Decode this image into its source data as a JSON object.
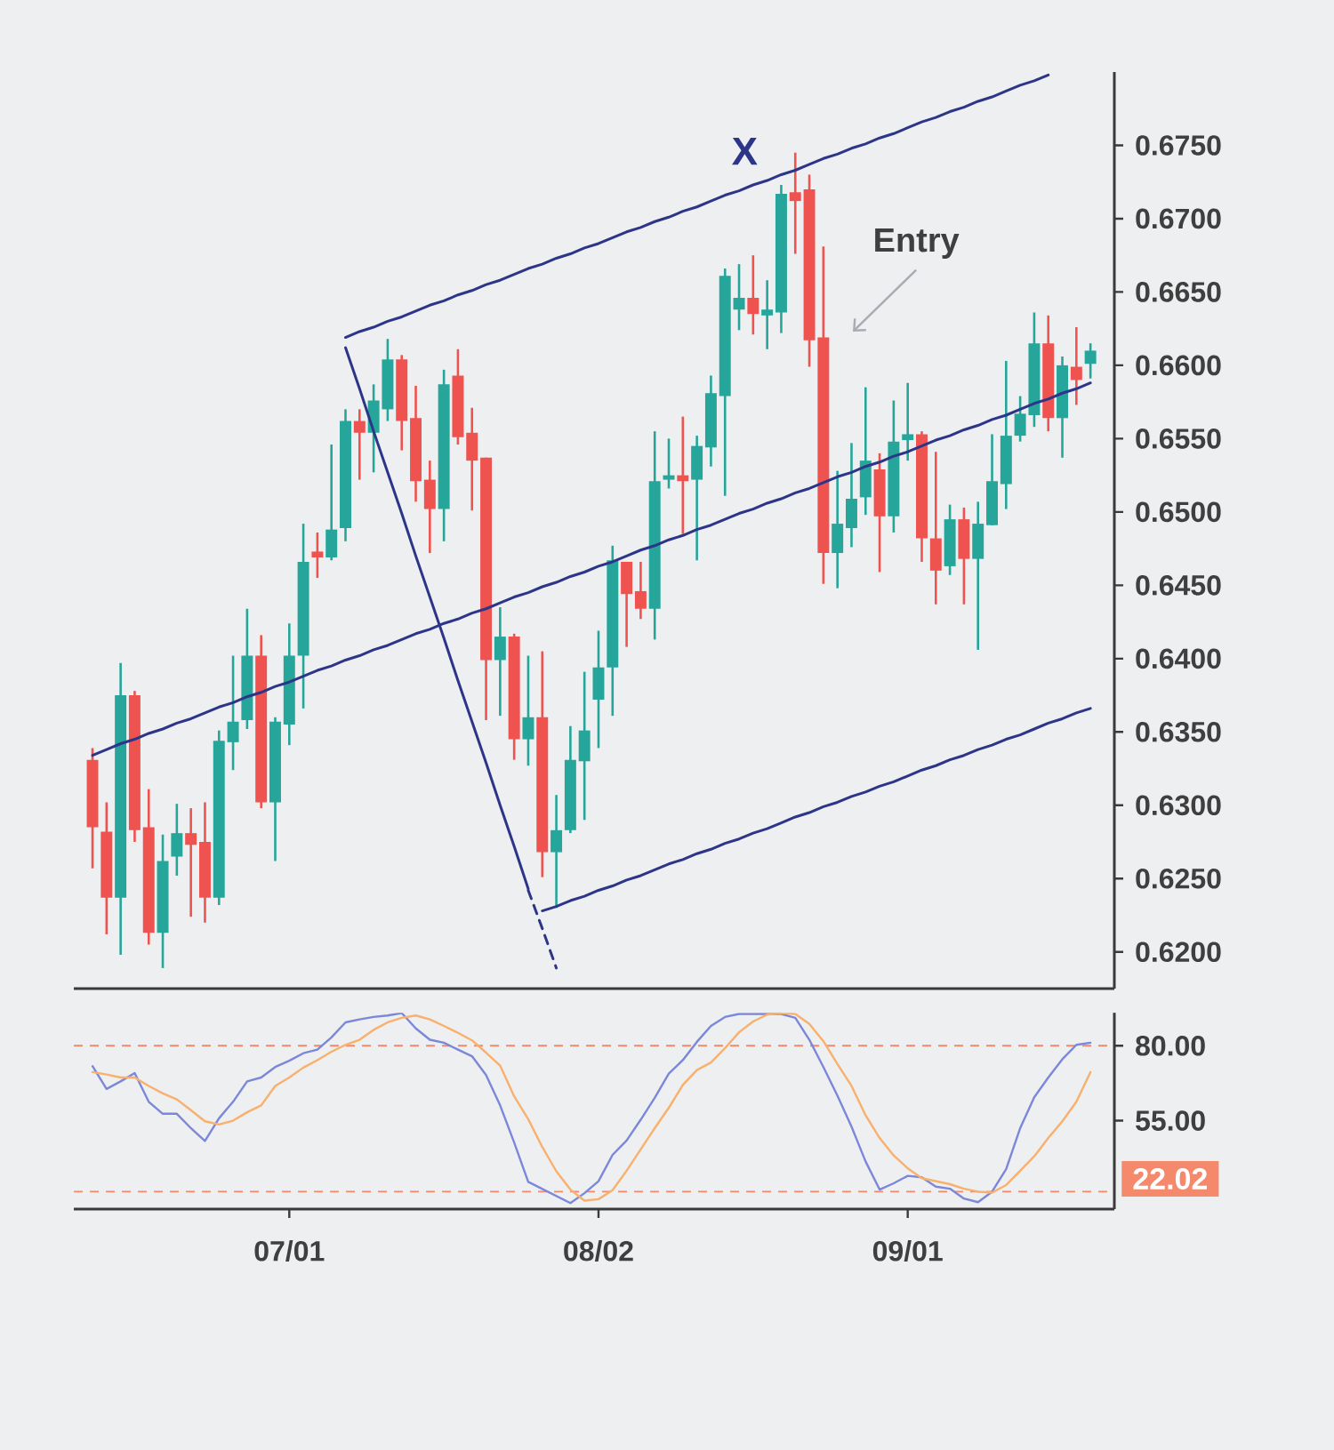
{
  "chart_data": [
    {
      "type": "candlestick",
      "ohlc": [
        [
          0.6331,
          0.6339,
          0.6257,
          0.6285
        ],
        [
          0.6282,
          0.6302,
          0.6212,
          0.6237
        ],
        [
          0.6237,
          0.6397,
          0.6198,
          0.6375
        ],
        [
          0.6375,
          0.6378,
          0.6275,
          0.6283
        ],
        [
          0.6285,
          0.6311,
          0.6205,
          0.6213
        ],
        [
          0.6213,
          0.628,
          0.6189,
          0.6262
        ],
        [
          0.6265,
          0.6301,
          0.6252,
          0.6281
        ],
        [
          0.6281,
          0.6298,
          0.6224,
          0.6273
        ],
        [
          0.6275,
          0.6302,
          0.622,
          0.6237
        ],
        [
          0.6237,
          0.6351,
          0.6232,
          0.6344
        ],
        [
          0.6343,
          0.6402,
          0.6324,
          0.6357
        ],
        [
          0.6358,
          0.6434,
          0.6352,
          0.6402
        ],
        [
          0.6402,
          0.6416,
          0.6298,
          0.6302
        ],
        [
          0.6302,
          0.636,
          0.6262,
          0.6357
        ],
        [
          0.6355,
          0.6424,
          0.6341,
          0.6402
        ],
        [
          0.6402,
          0.6492,
          0.6366,
          0.6466
        ],
        [
          0.6473,
          0.6486,
          0.6455,
          0.6469
        ],
        [
          0.6469,
          0.6546,
          0.6467,
          0.6488
        ],
        [
          0.6489,
          0.657,
          0.648,
          0.6562
        ],
        [
          0.6562,
          0.657,
          0.6522,
          0.6554
        ],
        [
          0.6554,
          0.6587,
          0.6527,
          0.6576
        ],
        [
          0.657,
          0.6618,
          0.6562,
          0.6604
        ],
        [
          0.6604,
          0.6607,
          0.6542,
          0.6562
        ],
        [
          0.6564,
          0.6586,
          0.6507,
          0.6521
        ],
        [
          0.6522,
          0.6535,
          0.6472,
          0.6502
        ],
        [
          0.6502,
          0.6597,
          0.648,
          0.6587
        ],
        [
          0.6593,
          0.6611,
          0.6546,
          0.6551
        ],
        [
          0.6554,
          0.6571,
          0.6501,
          0.6535
        ],
        [
          0.6537,
          0.6537,
          0.6358,
          0.6399
        ],
        [
          0.6399,
          0.6435,
          0.6361,
          0.6415
        ],
        [
          0.6415,
          0.6417,
          0.6331,
          0.6345
        ],
        [
          0.6345,
          0.6402,
          0.6327,
          0.636
        ],
        [
          0.636,
          0.6405,
          0.6251,
          0.6268
        ],
        [
          0.6268,
          0.6307,
          0.623,
          0.6283
        ],
        [
          0.6283,
          0.6354,
          0.6281,
          0.6331
        ],
        [
          0.633,
          0.6391,
          0.629,
          0.6351
        ],
        [
          0.6372,
          0.6419,
          0.6339,
          0.6394
        ],
        [
          0.6394,
          0.6477,
          0.6361,
          0.6467
        ],
        [
          0.6466,
          0.6466,
          0.6408,
          0.6444
        ],
        [
          0.6446,
          0.6466,
          0.6427,
          0.6434
        ],
        [
          0.6434,
          0.6555,
          0.6413,
          0.6521
        ],
        [
          0.6522,
          0.655,
          0.6516,
          0.6525
        ],
        [
          0.6525,
          0.6565,
          0.6485,
          0.6521
        ],
        [
          0.6522,
          0.6552,
          0.6467,
          0.6545
        ],
        [
          0.6544,
          0.6593,
          0.6531,
          0.6581
        ],
        [
          0.6579,
          0.6666,
          0.6511,
          0.6661
        ],
        [
          0.6638,
          0.6669,
          0.6624,
          0.6646
        ],
        [
          0.6646,
          0.6675,
          0.6621,
          0.6635
        ],
        [
          0.6634,
          0.6658,
          0.6611,
          0.6638
        ],
        [
          0.6636,
          0.6723,
          0.6622,
          0.6717
        ],
        [
          0.6718,
          0.6745,
          0.6676,
          0.6712
        ],
        [
          0.672,
          0.673,
          0.6599,
          0.6617
        ],
        [
          0.6619,
          0.6681,
          0.6451,
          0.6472
        ],
        [
          0.6472,
          0.6528,
          0.6448,
          0.6492
        ],
        [
          0.6489,
          0.6547,
          0.6476,
          0.6509
        ],
        [
          0.651,
          0.6585,
          0.6498,
          0.6535
        ],
        [
          0.6529,
          0.654,
          0.6459,
          0.6497
        ],
        [
          0.6497,
          0.6576,
          0.6486,
          0.6548
        ],
        [
          0.6549,
          0.6588,
          0.6535,
          0.6553
        ],
        [
          0.6553,
          0.6555,
          0.6466,
          0.6482
        ],
        [
          0.6482,
          0.6541,
          0.6437,
          0.646
        ],
        [
          0.6463,
          0.6505,
          0.6457,
          0.6495
        ],
        [
          0.6495,
          0.6503,
          0.6437,
          0.6468
        ],
        [
          0.6468,
          0.6507,
          0.6406,
          0.6492
        ],
        [
          0.6491,
          0.6553,
          0.6491,
          0.6521
        ],
        [
          0.6519,
          0.6603,
          0.6502,
          0.6552
        ],
        [
          0.6552,
          0.6579,
          0.6548,
          0.6567
        ],
        [
          0.6566,
          0.6636,
          0.6558,
          0.6615
        ],
        [
          0.6615,
          0.6634,
          0.6555,
          0.6564
        ],
        [
          0.6564,
          0.6606,
          0.6537,
          0.66
        ],
        [
          0.6599,
          0.6626,
          0.6573,
          0.659
        ],
        [
          0.6601,
          0.6615,
          0.6591,
          0.661
        ]
      ],
      "colors": [
        "#ef5350",
        "#ef5350",
        "#26a69a",
        "#ef5350",
        "#ef5350",
        "#26a69a",
        "#26a69a",
        "#ef5350",
        "#ef5350",
        "#26a69a",
        "#26a69a",
        "#26a69a",
        "#ef5350",
        "#26a69a",
        "#26a69a",
        "#26a69a",
        "#ef5350",
        "#26a69a",
        "#26a69a",
        "#ef5350",
        "#26a69a",
        "#26a69a",
        "#ef5350",
        "#ef5350",
        "#ef5350",
        "#26a69a",
        "#ef5350",
        "#ef5350",
        "#ef5350",
        "#26a69a",
        "#ef5350",
        "#26a69a",
        "#ef5350",
        "#26a69a",
        "#26a69a",
        "#26a69a",
        "#26a69a",
        "#26a69a",
        "#ef5350",
        "#ef5350",
        "#26a69a",
        "#26a69a",
        "#ef5350",
        "#26a69a",
        "#26a69a",
        "#26a69a",
        "#26a69a",
        "#ef5350",
        "#26a69a",
        "#26a69a",
        "#ef5350",
        "#ef5350",
        "#ef5350",
        "#26a69a",
        "#26a69a",
        "#26a69a",
        "#ef5350",
        "#26a69a",
        "#26a69a",
        "#ef5350",
        "#ef5350",
        "#26a69a",
        "#ef5350",
        "#26a69a",
        "#26a69a",
        "#26a69a",
        "#26a69a",
        "#26a69a",
        "#ef5350",
        "#26a69a",
        "#ef5350",
        "#26a69a"
      ],
      "series": [
        {
          "type": "line",
          "color": "#2c3587",
          "values": [
            null,
            null,
            null,
            null,
            null,
            null,
            null,
            null,
            null,
            null,
            null,
            null,
            null,
            null,
            null,
            null,
            null,
            null,
            0.6619,
            0.6623,
            0.6626,
            0.663,
            0.6633,
            0.6637,
            0.6641,
            0.6644,
            0.6648,
            0.6651,
            0.6655,
            0.6658,
            0.6662,
            0.6666,
            0.6669,
            0.6673,
            0.6676,
            0.668,
            0.6683,
            0.6687,
            0.6691,
            0.6694,
            0.6698,
            0.6701,
            0.6705,
            0.6708,
            0.6712,
            0.6716,
            0.6719,
            0.6723,
            0.6726,
            0.673,
            0.6733,
            0.6737,
            0.6741,
            0.6744,
            0.6748,
            0.6751,
            0.6755,
            0.6758,
            0.6762,
            0.6766,
            0.6769,
            0.6773,
            0.6776,
            0.678,
            0.6783,
            0.6787,
            0.6791,
            0.6794,
            0.6798,
            null,
            null,
            null
          ]
        },
        {
          "type": "line",
          "color": "#2c3587",
          "values": [
            0.6334,
            0.6338,
            0.6342,
            0.6345,
            0.6349,
            0.6352,
            0.6356,
            0.6359,
            0.6363,
            0.6367,
            0.637,
            0.6374,
            0.6377,
            0.6381,
            0.6384,
            0.6388,
            0.6392,
            0.6395,
            0.6399,
            0.6402,
            0.6406,
            0.6409,
            0.6413,
            0.6417,
            0.642,
            0.6424,
            0.6427,
            0.6431,
            0.6434,
            0.6438,
            0.6442,
            0.6445,
            0.6449,
            0.6452,
            0.6456,
            0.6459,
            0.6463,
            0.6466,
            0.647,
            0.6474,
            0.6477,
            0.6481,
            0.6484,
            0.6488,
            0.6491,
            0.6495,
            0.6499,
            0.6502,
            0.6506,
            0.6509,
            0.6513,
            0.6516,
            0.652,
            0.6524,
            0.6527,
            0.6531,
            0.6534,
            0.6538,
            0.6541,
            0.6545,
            0.6549,
            0.6552,
            0.6556,
            0.6559,
            0.6563,
            0.6566,
            0.657,
            0.6574,
            0.6577,
            0.6581,
            0.6584,
            0.6588
          ]
        },
        {
          "type": "line",
          "color": "#2c3587",
          "values": [
            null,
            null,
            null,
            null,
            null,
            null,
            null,
            null,
            null,
            null,
            null,
            null,
            null,
            null,
            null,
            null,
            null,
            null,
            null,
            null,
            null,
            null,
            null,
            null,
            null,
            null,
            null,
            null,
            null,
            null,
            null,
            null,
            0.6228,
            0.6231,
            0.6235,
            0.6238,
            0.6242,
            0.6245,
            0.6249,
            0.6252,
            0.6256,
            0.626,
            0.6263,
            0.6267,
            0.627,
            0.6274,
            0.6277,
            0.6281,
            0.6284,
            0.6288,
            0.6292,
            0.6295,
            0.6299,
            0.6302,
            0.6306,
            0.6309,
            0.6313,
            0.6316,
            0.632,
            0.6324,
            0.6327,
            0.6331,
            0.6334,
            0.6338,
            0.6341,
            0.6345,
            0.6348,
            0.6352,
            0.6356,
            0.6359,
            0.6363,
            0.6366
          ]
        },
        {
          "type": "line",
          "color": "#2c3587",
          "values": [
            null,
            null,
            null,
            null,
            null,
            null,
            null,
            null,
            null,
            null,
            null,
            null,
            null,
            null,
            null,
            null,
            null,
            null,
            0.6612,
            0.6584,
            0.6555,
            0.6527,
            0.6499,
            0.647,
            0.6442,
            0.6414,
            0.6385,
            0.6357,
            0.6329,
            0.63,
            0.6272,
            0.6243,
            null,
            null,
            null,
            null,
            null,
            null,
            null,
            null,
            null,
            null,
            null,
            null,
            null,
            null,
            null,
            null,
            null,
            null,
            null,
            null,
            null,
            null,
            null,
            null,
            null,
            null,
            null,
            null,
            null,
            null,
            null,
            null,
            null,
            null,
            null,
            null,
            null,
            null,
            null,
            null
          ]
        },
        {
          "type": "line",
          "color": "#2c3587",
          "line_style": "dashed",
          "values": [
            null,
            null,
            null,
            null,
            null,
            null,
            null,
            null,
            null,
            null,
            null,
            null,
            null,
            null,
            null,
            null,
            null,
            null,
            null,
            null,
            null,
            null,
            null,
            null,
            null,
            null,
            null,
            null,
            null,
            null,
            null,
            0.6242,
            0.6216,
            0.6189,
            null,
            null,
            null,
            null,
            null,
            null,
            null,
            null,
            null,
            null,
            null,
            null,
            null,
            null,
            null,
            null,
            null,
            null,
            null,
            null,
            null,
            null,
            null,
            null,
            null,
            null,
            null,
            null,
            null,
            null,
            null,
            null,
            null,
            null,
            null,
            null,
            null,
            null
          ]
        }
      ],
      "ylim": [
        0.6175,
        0.68
      ],
      "yticks": [
        {
          "value": 0.62,
          "label": "0.6200"
        },
        {
          "value": 0.625,
          "label": "0.6250"
        },
        {
          "value": 0.63,
          "label": "0.6300"
        },
        {
          "value": 0.635,
          "label": "0.6350"
        },
        {
          "value": 0.64,
          "label": "0.6400"
        },
        {
          "value": 0.645,
          "label": "0.6450"
        },
        {
          "value": 0.65,
          "label": "0.6500"
        },
        {
          "value": 0.655,
          "label": "0.6550"
        },
        {
          "value": 0.66,
          "label": "0.6600"
        },
        {
          "value": 0.665,
          "label": "0.6650"
        },
        {
          "value": 0.67,
          "label": "0.6700"
        },
        {
          "value": 0.675,
          "label": "0.6750"
        }
      ],
      "annotations": [
        "X",
        "Entry"
      ],
      "tick_labels": "y"
    },
    {
      "type": "line",
      "categories": [
        null,
        null,
        null,
        null,
        null,
        null,
        null,
        null,
        null,
        null,
        null,
        null,
        null,
        null,
        "07/01",
        null,
        null,
        null,
        null,
        null,
        null,
        null,
        null,
        null,
        null,
        null,
        null,
        null,
        null,
        null,
        null,
        null,
        null,
        null,
        null,
        null,
        "08/02",
        null,
        null,
        null,
        null,
        null,
        null,
        null,
        null,
        null,
        null,
        null,
        null,
        null,
        null,
        null,
        null,
        null,
        null,
        null,
        null,
        null,
        "09/01",
        null,
        null,
        null,
        null,
        null,
        null,
        null,
        null,
        null,
        null,
        null,
        null,
        null
      ],
      "series": [
        {
          "color": "#7b87d8",
          "values": [
            73.2,
            65.6,
            68.1,
            70.9,
            61.3,
            57.3,
            57.3,
            52.5,
            48.2,
            55.8,
            61.3,
            68.1,
            69.4,
            72.9,
            75.0,
            77.5,
            78.7,
            82.8,
            87.8,
            88.8,
            89.6,
            90.1,
            90.9,
            85.8,
            82.0,
            81.0,
            78.7,
            76.5,
            70.2,
            60.1,
            47.7,
            34.6,
            null,
            null,
            27.5,
            30.8,
            34.8,
            43.6,
            48.4,
            55.3,
            62.6,
            70.7,
            75.2,
            81.3,
            86.6,
            89.6,
            90.6,
            90.6,
            90.6,
            90.6,
            89.3,
            82.0,
            72.9,
            63.3,
            53.0,
            41.4,
            32.0,
            34.1,
            36.6,
            36.1,
            33.0,
            32.3,
            29.0,
            27.8,
            31.3,
            38.8,
            52.5,
            62.8,
            69.4,
            75.5,
            80.3,
            81.0
          ]
        },
        {
          "color": "#f8b06c",
          "values": [
            71.2,
            70.4,
            69.4,
            69.4,
            66.6,
            64.1,
            62.1,
            58.5,
            54.8,
            53.7,
            55.0,
            57.8,
            60.1,
            66.6,
            69.4,
            72.7,
            75.2,
            78.0,
            80.3,
            82.0,
            85.3,
            87.8,
            89.3,
            90.1,
            88.8,
            86.6,
            84.3,
            81.8,
            77.7,
            73.4,
            63.1,
            55.5,
            46.2,
            38.1,
            32.0,
            28.3,
            28.8,
            31.8,
            38.3,
            45.4,
            52.5,
            59.3,
            66.9,
            71.9,
            74.4,
            79.2,
            84.5,
            88.1,
            90.4,
            90.9,
            90.6,
            87.3,
            81.5,
            73.9,
            66.6,
            56.8,
            49.2,
            43.4,
            39.1,
            35.8,
            34.8,
            33.8,
            32.3,
            31.3,
            31.0,
            33.5,
            38.3,
            43.1,
            49.2,
            54.8,
            61.3,
            71.2
          ]
        }
      ],
      "ref_lines": [
        {
          "axis": "y",
          "value": 80,
          "color": "#f08a6a",
          "line_style": "dashed"
        },
        {
          "axis": "y",
          "value": 31.3,
          "color": "#f08a6a",
          "line_style": "dashed"
        }
      ],
      "ylim": [
        25.5,
        91
      ],
      "yticks": [
        {
          "value": 55,
          "label": "55.00"
        },
        {
          "value": 80,
          "label": "80.00"
        }
      ],
      "annotations": [
        "22.02"
      ]
    }
  ]
}
